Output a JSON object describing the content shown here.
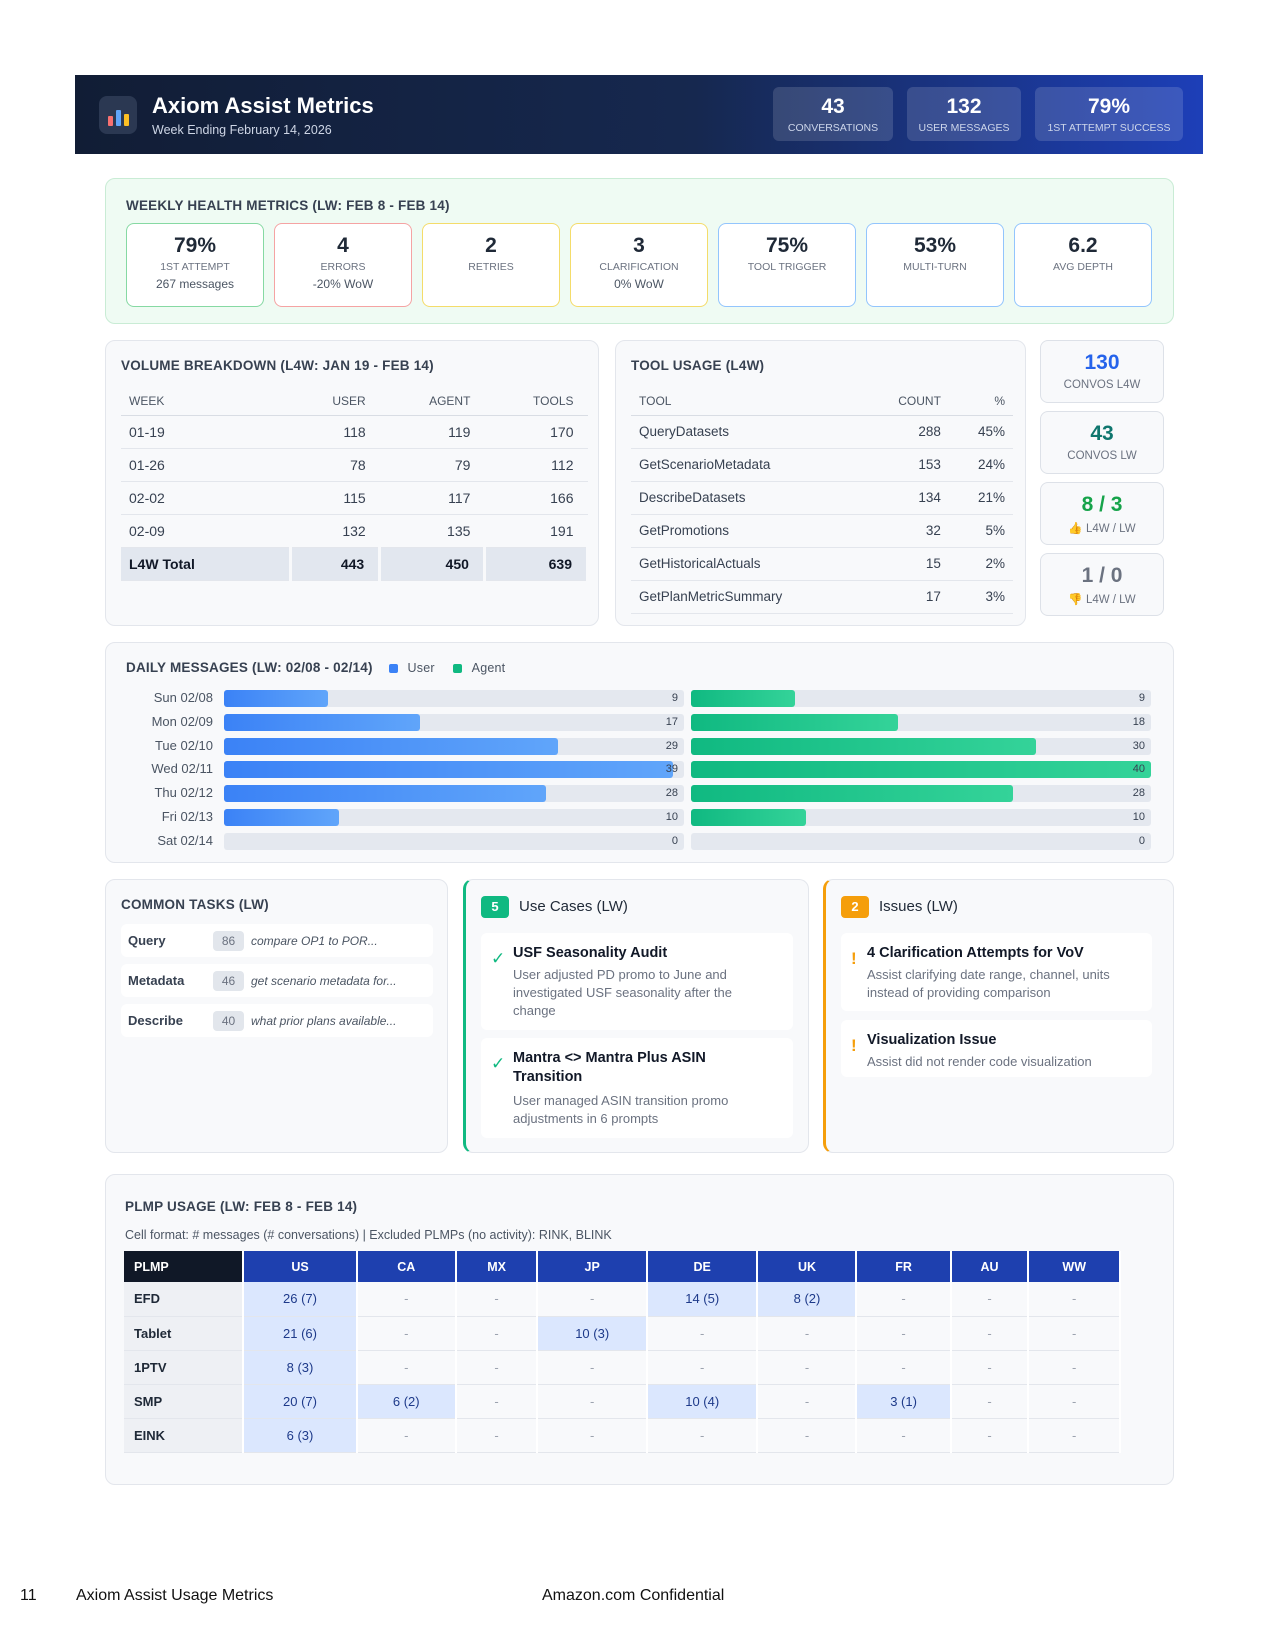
{
  "header": {
    "title": "Axiom Assist Metrics",
    "subtitle": "Week Ending February 14, 2026",
    "logo_icon": "bar-chart-icon",
    "stats": [
      {
        "value": "43",
        "label": "Conversations"
      },
      {
        "value": "132",
        "label": "User Messages"
      },
      {
        "value": "79%",
        "label": "1st Attempt Success"
      }
    ]
  },
  "health": {
    "title": "Weekly Health Metrics (LW: Feb 8 - Feb 14)",
    "cards": [
      {
        "value": "79%",
        "label": "1st Attempt",
        "note": "267 messages"
      },
      {
        "value": "4",
        "label": "Errors",
        "note": "-20% WoW"
      },
      {
        "value": "2",
        "label": "Retries",
        "note": ""
      },
      {
        "value": "3",
        "label": "Clarification",
        "note": "0% WoW"
      },
      {
        "value": "75%",
        "label": "Tool Trigger",
        "note": ""
      },
      {
        "value": "53%",
        "label": "Multi-Turn",
        "note": ""
      },
      {
        "value": "6.2",
        "label": "Avg Depth",
        "note": ""
      }
    ]
  },
  "volume": {
    "title": "Volume Breakdown (L4W: Jan 19 - Feb 14)",
    "columns": [
      "Week",
      "User",
      "Agent",
      "Tools"
    ],
    "rows": [
      [
        "01-19",
        "118",
        "119",
        "170"
      ],
      [
        "01-26",
        "78",
        "79",
        "112"
      ],
      [
        "02-02",
        "115",
        "117",
        "166"
      ],
      [
        "02-09",
        "132",
        "135",
        "191"
      ]
    ],
    "total": [
      "L4W Total",
      "443",
      "450",
      "639"
    ]
  },
  "tools": {
    "title": "Tool Usage (L4W)",
    "columns": [
      "Tool",
      "Count",
      "%"
    ],
    "rows": [
      [
        "QueryDatasets",
        "288",
        "45%"
      ],
      [
        "GetScenarioMetadata",
        "153",
        "24%"
      ],
      [
        "DescribeDatasets",
        "134",
        "21%"
      ],
      [
        "GetPromotions",
        "32",
        "5%"
      ],
      [
        "GetHistoricalActuals",
        "15",
        "2%"
      ],
      [
        "GetPlanMetricSummary",
        "17",
        "3%"
      ]
    ]
  },
  "side_cards": [
    {
      "value": "130",
      "label": "Convos L4W",
      "icon": "",
      "color": "#2563eb"
    },
    {
      "value": "43",
      "label": "Convos LW",
      "icon": "",
      "color": "#0f766e"
    },
    {
      "value": "8 / 3",
      "label": "L4W / LW",
      "icon": "thumbs-up-icon",
      "color": "#16a34a"
    },
    {
      "value": "1 / 0",
      "label": "L4W / LW",
      "icon": "thumbs-down-icon",
      "color": "#6b7280"
    }
  ],
  "daily": {
    "title": "Daily Messages (LW: 02/08 - 02/14)",
    "legend": [
      "User",
      "Agent"
    ],
    "max": 40
  },
  "chart_data": {
    "type": "bar",
    "title": "Daily Messages (LW: 02/08 - 02/14)",
    "categories": [
      "Sun 02/08",
      "Mon 02/09",
      "Tue 02/10",
      "Wed 02/11",
      "Thu 02/12",
      "Fri 02/13",
      "Sat 02/14"
    ],
    "series": [
      {
        "name": "User",
        "values": [
          9,
          17,
          29,
          39,
          28,
          10,
          0
        ],
        "color": "#3b82f6"
      },
      {
        "name": "Agent",
        "values": [
          9,
          18,
          30,
          40,
          28,
          10,
          0
        ],
        "color": "#10b981"
      }
    ],
    "orientation": "horizontal",
    "xlim": [
      0,
      40
    ]
  },
  "tasks": {
    "title": "Common Tasks (LW)",
    "items": [
      {
        "name": "Query",
        "count": "86",
        "example": "compare OP1 to POR..."
      },
      {
        "name": "Metadata",
        "count": "46",
        "example": "get scenario metadata for..."
      },
      {
        "name": "Describe",
        "count": "40",
        "example": "what prior plans available..."
      }
    ]
  },
  "use_cases": {
    "count": "5",
    "title": "Use Cases (LW)",
    "items": [
      {
        "title": "USF Seasonality Audit",
        "desc": "User adjusted PD promo to June and investigated USF seasonality after the change"
      },
      {
        "title": "Mantra <> Mantra Plus ASIN Transition",
        "desc": "User managed ASIN transition promo adjustments in 6 prompts"
      }
    ]
  },
  "issues": {
    "count": "2",
    "title": "Issues (LW)",
    "items": [
      {
        "title": "4 Clarification Attempts for VoV",
        "desc": "Assist clarifying date range, channel, units instead of providing comparison"
      },
      {
        "title": "Visualization Issue",
        "desc": "Assist did not render code visualization"
      }
    ]
  },
  "plmp": {
    "title": "PLMP Usage (LW: Feb 8 - Feb 14)",
    "subtitle": "Cell format: # messages (# conversations) | Excluded PLMPs (no activity): RINK, BLINK",
    "columns": [
      "PLMP",
      "US",
      "CA",
      "MX",
      "JP",
      "DE",
      "UK",
      "FR",
      "AU",
      "WW"
    ],
    "rows": [
      [
        "EFD",
        "26 (7)",
        "-",
        "-",
        "-",
        "14 (5)",
        "8 (2)",
        "-",
        "-",
        "-"
      ],
      [
        "Tablet",
        "21 (6)",
        "-",
        "-",
        "10 (3)",
        "-",
        "-",
        "-",
        "-",
        "-"
      ],
      [
        "1PTV",
        "8 (3)",
        "-",
        "-",
        "-",
        "-",
        "-",
        "-",
        "-",
        "-"
      ],
      [
        "SMP",
        "20 (7)",
        "6 (2)",
        "-",
        "-",
        "10 (4)",
        "-",
        "3 (1)",
        "-",
        "-"
      ],
      [
        "EINK",
        "6 (3)",
        "-",
        "-",
        "-",
        "-",
        "-",
        "-",
        "-",
        "-"
      ]
    ]
  },
  "footer": {
    "page": "11",
    "doc": "Axiom Assist Usage Metrics",
    "confidential": "Amazon.com Confidential"
  }
}
